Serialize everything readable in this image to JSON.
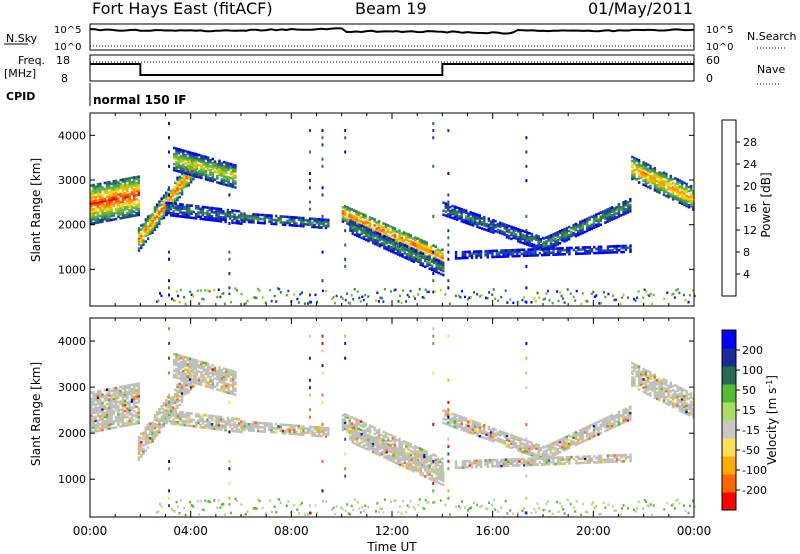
{
  "header": {
    "title": "Fort Hays East (fitACF)",
    "beam": "Beam 19",
    "date": "01/May/2011"
  },
  "top_panels": {
    "nsky_label": "N.Sky",
    "nsky_ticks": [
      "10^5",
      "10^0"
    ],
    "nsearch_label": "N.Search",
    "nsearch_ticks": [
      "10^5",
      "10^0"
    ],
    "freq_label_line1": "Freq.",
    "freq_label_line2": "[MHz]",
    "freq_ticks": [
      "18",
      "8"
    ],
    "nave_label": "Nave",
    "nave_ticks": [
      "60",
      "0"
    ],
    "cpid_label": "CPID",
    "cpid_value": "normal 150 IF"
  },
  "colors": {
    "power_scale": [
      "#0000ff",
      "#1a3ea8",
      "#2f7a4a",
      "#4f9a4f",
      "#5ab84a",
      "#c8c800",
      "#ffd21a",
      "#ff9900",
      "#ff5a00",
      "#ff0000"
    ],
    "velocity_scale": [
      "#ff0000",
      "#ff6600",
      "#ffaa00",
      "#ffdd55",
      "#c8c8c8",
      "#aadd66",
      "#55bb33",
      "#2a6a55",
      "#1a2a99",
      "#0000ff"
    ],
    "ground_scatter": "#bebebe"
  },
  "chart_data": [
    {
      "panel": "power",
      "type": "heatmap",
      "ylabel": "Slant Range [km]",
      "xlabel": "Time UT",
      "xticks": [
        "00:00",
        "04:00",
        "08:00",
        "12:00",
        "16:00",
        "20:00",
        "00:00"
      ],
      "xlim_hours": [
        0,
        24
      ],
      "yticks": [
        "1000",
        "2000",
        "3000",
        "4000"
      ],
      "ylim_km": [
        180,
        4500
      ],
      "colorbar_label": "Power [dB]",
      "colorbar_ticks": [
        "4",
        "8",
        "12",
        "16",
        "20",
        "24",
        "28"
      ],
      "colorbar_range": [
        0,
        30
      ],
      "echo_bands": [
        {
          "t": [
            0.0,
            1.9
          ],
          "r_center": [
            2500,
            2700
          ],
          "width": 900,
          "peak_db": 28
        },
        {
          "t": [
            1.9,
            4.2
          ],
          "r_center": [
            1700,
            3400
          ],
          "width": 500,
          "peak_db": 26
        },
        {
          "t": [
            3.3,
            5.8
          ],
          "r_center": [
            3500,
            3100
          ],
          "width": 500,
          "peak_db": 18
        },
        {
          "t": [
            3.0,
            6.0
          ],
          "r_center": [
            2400,
            2200
          ],
          "width": 300,
          "peak_db": 8
        },
        {
          "t": [
            6.0,
            9.5
          ],
          "r_center": [
            2200,
            2050
          ],
          "width": 200,
          "peak_db": 10
        },
        {
          "t": [
            10.0,
            14.0
          ],
          "r_center": [
            2300,
            1300
          ],
          "width": 400,
          "peak_db": 26
        },
        {
          "t": [
            10.3,
            14.0
          ],
          "r_center": [
            2000,
            1050
          ],
          "width": 300,
          "peak_db": 10
        },
        {
          "t": [
            14.0,
            18.0
          ],
          "r_center": [
            2400,
            1600
          ],
          "width": 300,
          "peak_db": 8
        },
        {
          "t": [
            18.0,
            21.5
          ],
          "r_center": [
            1600,
            2500
          ],
          "width": 300,
          "peak_db": 10
        },
        {
          "t": [
            14.5,
            21.5
          ],
          "r_center": [
            1350,
            1500
          ],
          "width": 150,
          "peak_db": 6
        },
        {
          "t": [
            21.5,
            24.0
          ],
          "r_center": [
            3300,
            2600
          ],
          "width": 500,
          "peak_db": 24
        }
      ]
    },
    {
      "panel": "velocity",
      "type": "heatmap",
      "ylabel": "Slant Range [km]",
      "xlabel": "Time UT",
      "xticks": [
        "00:00",
        "04:00",
        "08:00",
        "12:00",
        "16:00",
        "20:00",
        "00:00"
      ],
      "xlim_hours": [
        0,
        24
      ],
      "yticks": [
        "1000",
        "2000",
        "3000",
        "4000"
      ],
      "ylim_km": [
        180,
        4500
      ],
      "colorbar_label_main": "Velocity [m s",
      "colorbar_label_sup": "-1",
      "colorbar_label_end": "]",
      "colorbar_ticks": [
        "200",
        "100",
        "50",
        "15",
        "-15",
        "-50",
        "-100",
        "-200"
      ],
      "velocity_bins": [
        -200,
        -100,
        -50,
        -15,
        15,
        50,
        100,
        200
      ]
    }
  ]
}
